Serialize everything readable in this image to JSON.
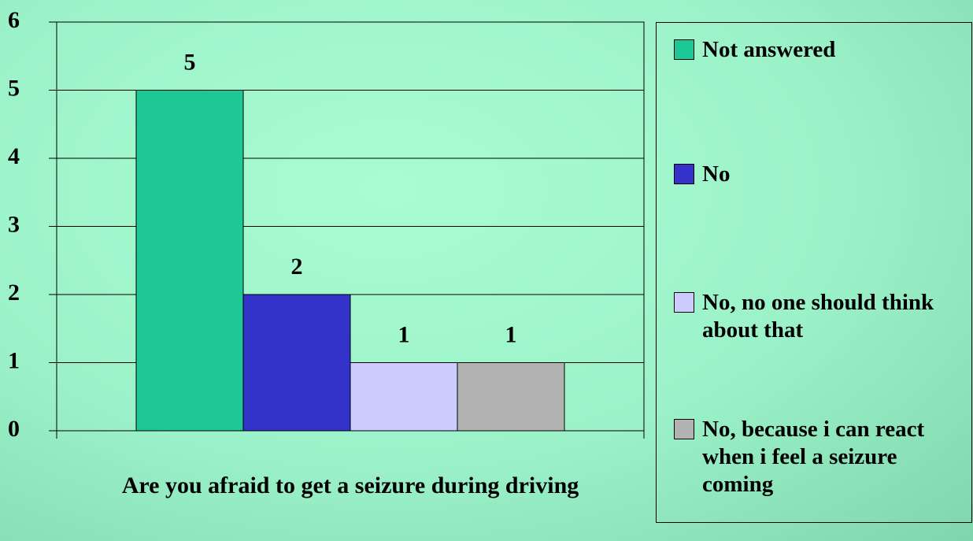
{
  "chart_data": {
    "type": "bar",
    "categories": [
      "Are you afraid to get a seizure during driving"
    ],
    "series": [
      {
        "name": "Not answered",
        "color": "#1ec896",
        "values": [
          5
        ]
      },
      {
        "name": "No",
        "color": "#3333cc",
        "values": [
          2
        ]
      },
      {
        "name": "No, no one should think about that",
        "color": "#ccccff",
        "values": [
          1
        ]
      },
      {
        "name": "No, because i can react when i feel a seizure coming",
        "color": "#b2b2b2",
        "values": [
          1
        ]
      }
    ],
    "ylim": [
      0,
      6
    ],
    "yticks": [
      0,
      1,
      2,
      3,
      4,
      5,
      6
    ],
    "grid": true,
    "legend": "right"
  }
}
